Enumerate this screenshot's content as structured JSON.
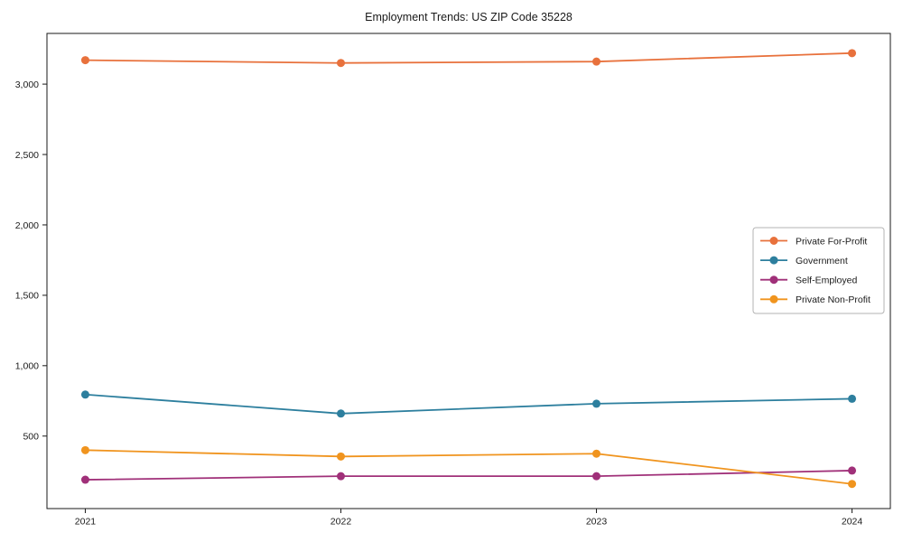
{
  "figure": {
    "title": "Employment Trends: US ZIP Code 35228"
  },
  "chart_data": {
    "type": "line",
    "title": "Employment Trends: US ZIP Code 35228",
    "x": [
      2021,
      2022,
      2023,
      2024
    ],
    "x_tick_labels": [
      "2021",
      "2022",
      "2023",
      "2024"
    ],
    "series": [
      {
        "name": "Private For-Profit",
        "color": "#e8713c",
        "values": [
          3170,
          3150,
          3160,
          3220
        ]
      },
      {
        "name": "Government",
        "color": "#2d7f9e",
        "values": [
          795,
          660,
          730,
          765
        ]
      },
      {
        "name": "Self-Employed",
        "color": "#a03079",
        "values": [
          190,
          215,
          215,
          255
        ]
      },
      {
        "name": "Private Non-Profit",
        "color": "#f0941e",
        "values": [
          400,
          355,
          375,
          160
        ]
      }
    ],
    "y_ticks": [
      500,
      1000,
      1500,
      2000,
      2500,
      3000
    ],
    "y_tick_labels": [
      "500",
      "1,000",
      "1,500",
      "2,000",
      "2,500",
      "3,000"
    ],
    "ylim": [
      -15,
      3360
    ],
    "xlim": [
      2020.85,
      2024.15
    ],
    "grid": false,
    "legend_position": "center right",
    "marker": "circle",
    "frame_color": "#1a1a1a",
    "legend_border_color": "#b3b3b3",
    "legend_background": "#ffffff"
  }
}
